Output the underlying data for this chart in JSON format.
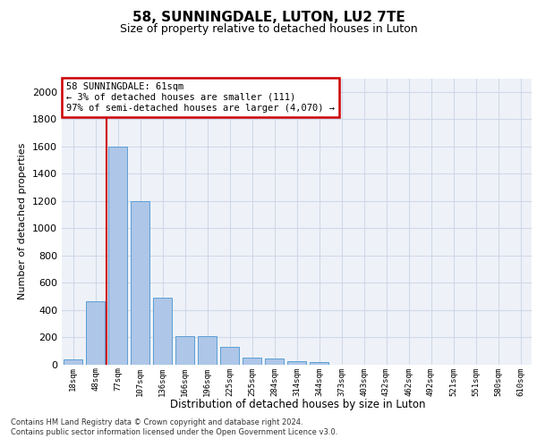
{
  "title": "58, SUNNINGDALE, LUTON, LU2 7TE",
  "subtitle": "Size of property relative to detached houses in Luton",
  "xlabel": "Distribution of detached houses by size in Luton",
  "ylabel": "Number of detached properties",
  "bar_labels": [
    "18sqm",
    "48sqm",
    "77sqm",
    "107sqm",
    "136sqm",
    "166sqm",
    "196sqm",
    "225sqm",
    "255sqm",
    "284sqm",
    "314sqm",
    "344sqm",
    "373sqm",
    "403sqm",
    "432sqm",
    "462sqm",
    "492sqm",
    "521sqm",
    "551sqm",
    "580sqm",
    "610sqm"
  ],
  "bar_values": [
    35,
    460,
    1600,
    1200,
    490,
    210,
    210,
    125,
    50,
    40,
    25,
    15,
    0,
    0,
    0,
    0,
    0,
    0,
    0,
    0,
    0
  ],
  "bar_color": "#aec6e8",
  "bar_edge_color": "#5a9fd4",
  "vline_x": 1.5,
  "vline_color": "#cc0000",
  "annotation_text": "58 SUNNINGDALE: 61sqm\n← 3% of detached houses are smaller (111)\n97% of semi-detached houses are larger (4,070) →",
  "annotation_box_color": "#ffffff",
  "annotation_box_edge": "#cc0000",
  "ylim": [
    0,
    2100
  ],
  "yticks": [
    0,
    200,
    400,
    600,
    800,
    1000,
    1200,
    1400,
    1600,
    1800,
    2000
  ],
  "grid_color": "#d0d8e8",
  "background_color": "#eef2f8",
  "footer_line1": "Contains HM Land Registry data © Crown copyright and database right 2024.",
  "footer_line2": "Contains public sector information licensed under the Open Government Licence v3.0."
}
